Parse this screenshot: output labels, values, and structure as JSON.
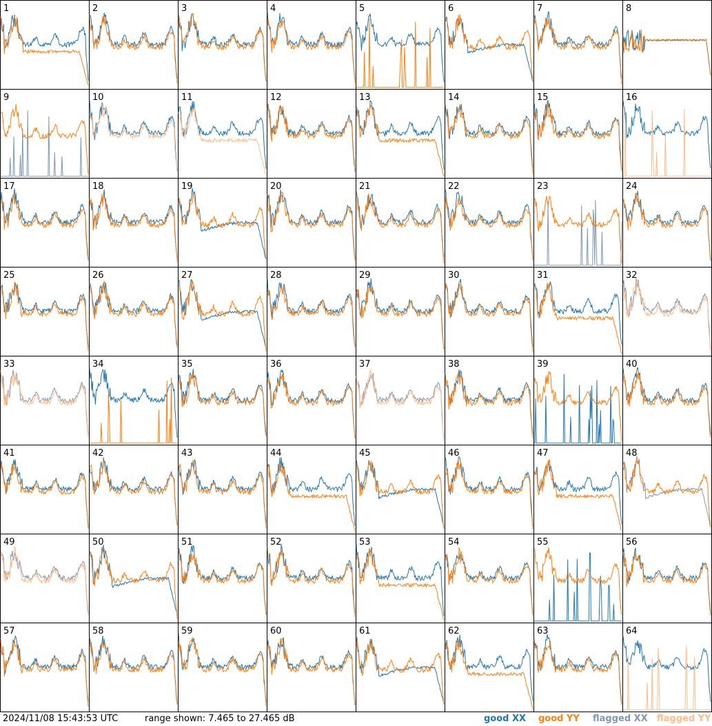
{
  "footer": {
    "timestamp": "2024/11/08 15:43:53 UTC",
    "range_text": "range shown: 7.465 to 27.465 dB"
  },
  "legend": {
    "good_xx": "good XX",
    "good_yy": "good YY",
    "flagged_xx": "flagged XX",
    "flagged_yy": "flagged YY"
  },
  "colors": {
    "good_xx": "#1f77b4",
    "good_yy": "#ff7f0e",
    "flagged_xx": "#7f98b3",
    "flagged_yy": "#ffbb88"
  },
  "chart_data": {
    "type": "line",
    "grid": "8x8 small multiples",
    "range_db": [
      7.465,
      27.465
    ],
    "panels": [
      {
        "id": 1,
        "xx": "good",
        "yy": "good",
        "profile": "yy_low_drop"
      },
      {
        "id": 2,
        "xx": "good",
        "yy": "good",
        "profile": "typical"
      },
      {
        "id": 3,
        "xx": "good",
        "yy": "good",
        "profile": "typical"
      },
      {
        "id": 4,
        "xx": "good",
        "yy": "good",
        "profile": "typical"
      },
      {
        "id": 5,
        "xx": "good",
        "yy": "good",
        "profile": "yy_spikes"
      },
      {
        "id": 6,
        "xx": "good",
        "yy": "good",
        "profile": "xx_low_drop"
      },
      {
        "id": 7,
        "xx": "good",
        "yy": "good",
        "profile": "typical"
      },
      {
        "id": 8,
        "xx": "good",
        "yy": "good",
        "profile": "flat_high"
      },
      {
        "id": 9,
        "xx": "flagged",
        "yy": "good",
        "profile": "xx_spikes"
      },
      {
        "id": 10,
        "xx": "good",
        "yy": "flagged",
        "profile": "typical"
      },
      {
        "id": 11,
        "xx": "good",
        "yy": "flagged",
        "profile": "yy_low_drop"
      },
      {
        "id": 12,
        "xx": "good",
        "yy": "good",
        "profile": "typical"
      },
      {
        "id": 13,
        "xx": "good",
        "yy": "good",
        "profile": "yy_low_drop"
      },
      {
        "id": 14,
        "xx": "good",
        "yy": "good",
        "profile": "typical"
      },
      {
        "id": 15,
        "xx": "good",
        "yy": "good",
        "profile": "typical"
      },
      {
        "id": 16,
        "xx": "good",
        "yy": "flagged",
        "profile": "yy_spikes"
      },
      {
        "id": 17,
        "xx": "good",
        "yy": "good",
        "profile": "typical"
      },
      {
        "id": 18,
        "xx": "good",
        "yy": "good",
        "profile": "typical"
      },
      {
        "id": 19,
        "xx": "good",
        "yy": "good",
        "profile": "xx_low_drop"
      },
      {
        "id": 20,
        "xx": "good",
        "yy": "good",
        "profile": "typical"
      },
      {
        "id": 21,
        "xx": "good",
        "yy": "good",
        "profile": "typical"
      },
      {
        "id": 22,
        "xx": "good",
        "yy": "good",
        "profile": "typical"
      },
      {
        "id": 23,
        "xx": "flagged",
        "yy": "good",
        "profile": "xx_spikes"
      },
      {
        "id": 24,
        "xx": "good",
        "yy": "good",
        "profile": "typical"
      },
      {
        "id": 25,
        "xx": "good",
        "yy": "good",
        "profile": "typical"
      },
      {
        "id": 26,
        "xx": "good",
        "yy": "good",
        "profile": "typical"
      },
      {
        "id": 27,
        "xx": "good",
        "yy": "good",
        "profile": "xx_low_drop"
      },
      {
        "id": 28,
        "xx": "good",
        "yy": "good",
        "profile": "typical"
      },
      {
        "id": 29,
        "xx": "good",
        "yy": "good",
        "profile": "typical"
      },
      {
        "id": 30,
        "xx": "good",
        "yy": "good",
        "profile": "typical"
      },
      {
        "id": 31,
        "xx": "good",
        "yy": "good",
        "profile": "yy_low_drop"
      },
      {
        "id": 32,
        "xx": "flagged",
        "yy": "flagged",
        "profile": "typical"
      },
      {
        "id": 33,
        "xx": "flagged",
        "yy": "flagged",
        "profile": "typical"
      },
      {
        "id": 34,
        "xx": "good",
        "yy": "good",
        "profile": "yy_spikes"
      },
      {
        "id": 35,
        "xx": "good",
        "yy": "good",
        "profile": "typical"
      },
      {
        "id": 36,
        "xx": "good",
        "yy": "good",
        "profile": "typical"
      },
      {
        "id": 37,
        "xx": "flagged",
        "yy": "flagged",
        "profile": "typical"
      },
      {
        "id": 38,
        "xx": "good",
        "yy": "good",
        "profile": "typical"
      },
      {
        "id": 39,
        "xx": "good",
        "yy": "good",
        "profile": "xx_spikes"
      },
      {
        "id": 40,
        "xx": "good",
        "yy": "good",
        "profile": "typical"
      },
      {
        "id": 41,
        "xx": "good",
        "yy": "good",
        "profile": "typical"
      },
      {
        "id": 42,
        "xx": "good",
        "yy": "good",
        "profile": "typical"
      },
      {
        "id": 43,
        "xx": "good",
        "yy": "good",
        "profile": "typical"
      },
      {
        "id": 44,
        "xx": "good",
        "yy": "good",
        "profile": "yy_low_drop"
      },
      {
        "id": 45,
        "xx": "good",
        "yy": "good",
        "profile": "xx_low_drop"
      },
      {
        "id": 46,
        "xx": "good",
        "yy": "good",
        "profile": "typical"
      },
      {
        "id": 47,
        "xx": "good",
        "yy": "good",
        "profile": "yy_low_drop"
      },
      {
        "id": 48,
        "xx": "flagged",
        "yy": "good",
        "profile": "xx_low_drop"
      },
      {
        "id": 49,
        "xx": "flagged",
        "yy": "flagged",
        "profile": "typical"
      },
      {
        "id": 50,
        "xx": "good",
        "yy": "good",
        "profile": "xx_low_drop"
      },
      {
        "id": 51,
        "xx": "good",
        "yy": "good",
        "profile": "typical"
      },
      {
        "id": 52,
        "xx": "good",
        "yy": "good",
        "profile": "typical"
      },
      {
        "id": 53,
        "xx": "good",
        "yy": "good",
        "profile": "yy_low_drop"
      },
      {
        "id": 54,
        "xx": "good",
        "yy": "good",
        "profile": "typical"
      },
      {
        "id": 55,
        "xx": "good",
        "yy": "good",
        "profile": "xx_spikes"
      },
      {
        "id": 56,
        "xx": "good",
        "yy": "good",
        "profile": "typical"
      },
      {
        "id": 57,
        "xx": "good",
        "yy": "good",
        "profile": "typical"
      },
      {
        "id": 58,
        "xx": "good",
        "yy": "good",
        "profile": "typical"
      },
      {
        "id": 59,
        "xx": "good",
        "yy": "good",
        "profile": "typical"
      },
      {
        "id": 60,
        "xx": "good",
        "yy": "good",
        "profile": "typical"
      },
      {
        "id": 61,
        "xx": "good",
        "yy": "good",
        "profile": "xx_low_drop"
      },
      {
        "id": 62,
        "xx": "good",
        "yy": "good",
        "profile": "yy_low_drop"
      },
      {
        "id": 63,
        "xx": "good",
        "yy": "good",
        "profile": "typical"
      },
      {
        "id": 64,
        "xx": "good",
        "yy": "flagged",
        "profile": "yy_spikes"
      }
    ]
  }
}
